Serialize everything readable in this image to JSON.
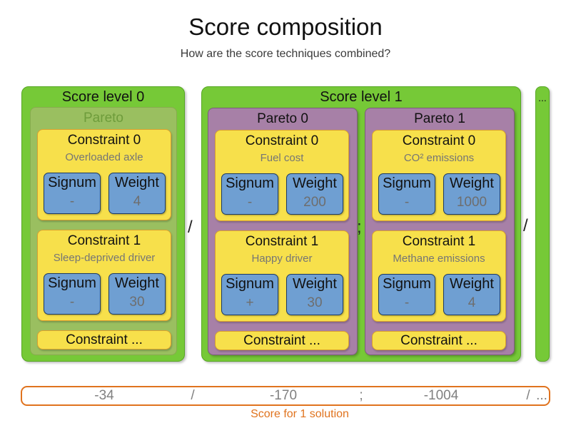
{
  "title": "Score composition",
  "subtitle": "How are the score techniques combined?",
  "labels": {
    "signum": "Signum",
    "weight": "Weight"
  },
  "levels": [
    {
      "label": "Score level 0",
      "paretos": [
        {
          "label": "Pareto",
          "constraints": [
            {
              "name": "Constraint 0",
              "description": "Overloaded axle",
              "signum": "-",
              "weight": "4"
            },
            {
              "name": "Constraint 1",
              "description": "Sleep-deprived driver",
              "signum": "-",
              "weight": "30"
            }
          ],
          "more": "Constraint ..."
        }
      ]
    },
    {
      "label": "Score level 1",
      "paretos": [
        {
          "label": "Pareto 0",
          "constraints": [
            {
              "name": "Constraint 0",
              "description": "Fuel cost",
              "signum": "-",
              "weight": "200"
            },
            {
              "name": "Constraint 1",
              "description": "Happy driver",
              "signum": "+",
              "weight": "30"
            }
          ],
          "more": "Constraint ..."
        },
        {
          "label": "Pareto 1",
          "constraints": [
            {
              "name": "Constraint 0",
              "description": "CO² emissions",
              "signum": "-",
              "weight": "1000"
            },
            {
              "name": "Constraint 1",
              "description": "Methane emissions",
              "signum": "-",
              "weight": "4"
            }
          ],
          "more": "Constraint ..."
        }
      ]
    }
  ],
  "more_levels": "...",
  "separators": {
    "level0_level1": "/",
    "pareto0_pareto1": ";",
    "level1_more": "/"
  },
  "score_bar": {
    "values": [
      "-34",
      "/",
      "-170",
      ";",
      "-1004",
      "/",
      "..."
    ],
    "caption": "Score for 1 solution"
  },
  "colors": {
    "level_green": "#76c937",
    "pareto_dim_green": "#9abf60",
    "pareto_purple": "#a780a7",
    "constraint_yellow": "#f7e04b",
    "chip_blue": "#6f9fd2",
    "accent_orange": "#e0731e",
    "muted_text_gray": "#757575"
  }
}
